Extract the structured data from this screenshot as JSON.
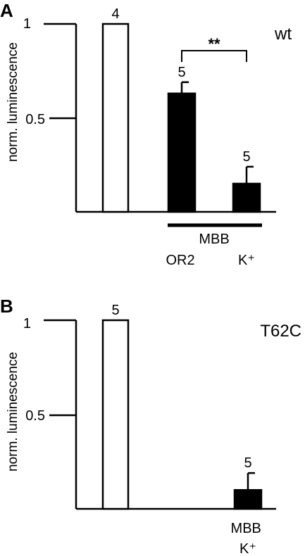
{
  "chart_data": [
    {
      "type": "bar",
      "panel": "A",
      "genotype": "wt",
      "ylabel": "norm. luminescence",
      "ylim": [
        0,
        1
      ],
      "yticks": [
        "1",
        "0.5"
      ],
      "categories": [
        "",
        "OR2",
        "K⁺"
      ],
      "group_label": "MBB",
      "values": [
        1.0,
        0.63,
        0.15
      ],
      "errors": [
        0,
        0.06,
        0.09
      ],
      "n": [
        "4",
        "5",
        "5"
      ],
      "fill": [
        "#ffffff",
        "#000000",
        "#000000"
      ],
      "significance": "**"
    },
    {
      "type": "bar",
      "panel": "B",
      "genotype": "T62C",
      "ylabel": "norm. luminescence",
      "ylim": [
        0,
        1
      ],
      "yticks": [
        "1",
        "0.5"
      ],
      "categories": [
        "",
        "",
        "MBB\nK⁺"
      ],
      "group_label": "MBB",
      "values": [
        1.0,
        null,
        0.1
      ],
      "errors": [
        0,
        0,
        0.09
      ],
      "n": [
        "5",
        "",
        "5"
      ],
      "fill": [
        "#ffffff",
        "#000000",
        "#000000"
      ]
    }
  ]
}
